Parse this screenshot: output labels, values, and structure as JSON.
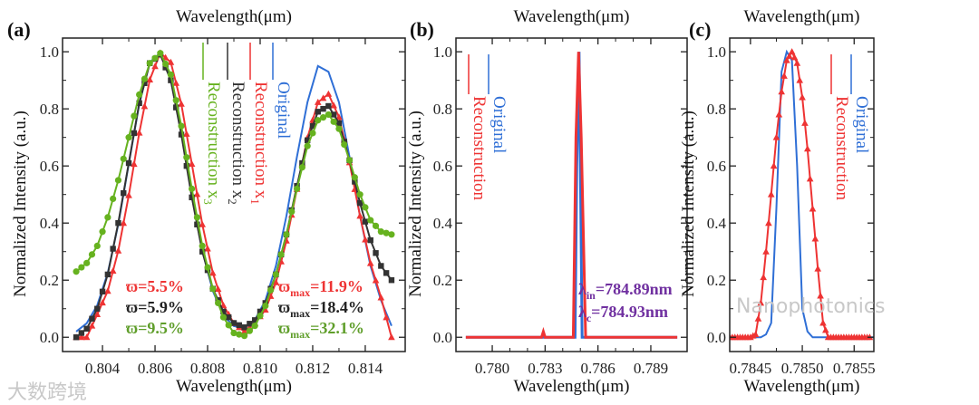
{
  "watermarks": {
    "left": "大数跨境",
    "right": "Nanophotonics"
  },
  "chart_data": [
    {
      "panel_label": "(a)",
      "type": "line",
      "title_top": "Wavelength(μm)",
      "xlabel": "Wavelength(μm)",
      "ylabel": "Normalized Intensity (a.u.)",
      "xlim": [
        0.80248,
        0.81552
      ],
      "ylim": [
        -0.05,
        1.048
      ],
      "xticks": [
        0.804,
        0.806,
        0.808,
        0.81,
        0.812,
        0.814
      ],
      "xtick_labels": [
        "0.804",
        "0.806",
        "0.808",
        "0.810",
        "0.812",
        "0.814"
      ],
      "yticks": [
        0.0,
        0.2,
        0.4,
        0.6,
        0.8,
        1.0
      ],
      "ytick_labels": [
        "0.0",
        "0.2",
        "0.4",
        "0.6",
        "0.8",
        "1.0"
      ],
      "x": [
        0.803,
        0.8034,
        0.8038,
        0.8042,
        0.8046,
        0.805,
        0.8054,
        0.8058,
        0.8062,
        0.8066,
        0.807,
        0.8074,
        0.8078,
        0.8082,
        0.8086,
        0.809,
        0.8094,
        0.8098,
        0.8102,
        0.8106,
        0.811,
        0.8114,
        0.8118,
        0.8122,
        0.8126,
        0.813,
        0.8134,
        0.8138,
        0.8142,
        0.8146,
        0.815
      ],
      "series": [
        {
          "name": "Original",
          "sub": "",
          "color": "#2f6fd6",
          "marker": "none",
          "values": [
            0.02,
            0.049,
            0.112,
            0.225,
            0.395,
            0.607,
            0.817,
            0.963,
            0.996,
            0.902,
            0.716,
            0.497,
            0.303,
            0.162,
            0.076,
            0.039,
            0.034,
            0.061,
            0.129,
            0.25,
            0.425,
            0.632,
            0.823,
            0.95,
            0.93,
            0.823,
            0.632,
            0.425,
            0.25,
            0.129,
            0.04
          ]
        },
        {
          "name": "Reconstruction x",
          "sub": "1",
          "color": "#ee3333",
          "marker": "triangle",
          "values": [
            0,
            0,
            0.08,
            0.162,
            0.303,
            0.497,
            0.716,
            0.902,
            0.996,
            0.963,
            0.817,
            0.607,
            0.395,
            0.225,
            0.112,
            0.049,
            0.02,
            0.05,
            0.096,
            0.192,
            0.338,
            0.519,
            0.699,
            0.823,
            0.852,
            0.771,
            0.612,
            0.425,
            0.259,
            0.139,
            0.0
          ]
        },
        {
          "name": "Reconstruction x",
          "sub": "2",
          "color": "#333333",
          "marker": "square",
          "values": [
            0,
            0.03,
            0.1,
            0.22,
            0.4,
            0.61,
            0.82,
            0.96,
            0.99,
            0.9,
            0.71,
            0.49,
            0.3,
            0.17,
            0.09,
            0.05,
            0.035,
            0.06,
            0.12,
            0.22,
            0.36,
            0.53,
            0.69,
            0.79,
            0.81,
            0.75,
            0.62,
            0.47,
            0.34,
            0.25,
            0.2
          ]
        },
        {
          "name": "Reconstruction x",
          "sub": "3",
          "color": "#66b21f",
          "marker": "circle",
          "values": [
            0.23,
            0.26,
            0.32,
            0.42,
            0.55,
            0.7,
            0.85,
            0.96,
            0.995,
            0.92,
            0.74,
            0.52,
            0.32,
            0.17,
            0.07,
            0.015,
            0.005,
            0.04,
            0.11,
            0.22,
            0.36,
            0.52,
            0.67,
            0.76,
            0.78,
            0.73,
            0.62,
            0.5,
            0.41,
            0.37,
            0.36
          ]
        }
      ],
      "annotations": [
        {
          "sym": "ϖ",
          "sub": "",
          "text": "=5.5%",
          "color": "#ee3333"
        },
        {
          "sym": "ϖ",
          "sub": "",
          "text": "=5.9%",
          "color": "#222222"
        },
        {
          "sym": "ϖ",
          "sub": "",
          "text": "=9.5%",
          "color": "#5f9e2a"
        },
        {
          "sym": "ϖ",
          "sub": "max",
          "text": "=11.9%",
          "color": "#ee3333"
        },
        {
          "sym": "ϖ",
          "sub": "max",
          "text": "=18.4%",
          "color": "#222222"
        },
        {
          "sym": "ϖ",
          "sub": "max",
          "text": "=32.1%",
          "color": "#5f9e2a"
        }
      ]
    },
    {
      "panel_label": "(b)",
      "type": "line",
      "title_top": "Wavelength(μm)",
      "xlabel": "Wavelength(μm)",
      "ylabel": "Normalized Intensity (a.u.)",
      "xlim": [
        0.77794,
        0.79106
      ],
      "ylim": [
        -0.05,
        1.048
      ],
      "xticks": [
        0.78,
        0.783,
        0.786,
        0.789
      ],
      "xtick_labels": [
        "0.780",
        "0.783",
        "0.786",
        "0.789"
      ],
      "yticks": [
        0.0,
        0.2,
        0.4,
        0.6,
        0.8,
        1.0
      ],
      "ytick_labels": [
        "0.0",
        "0.2",
        "0.4",
        "0.6",
        "0.8",
        "1.0"
      ],
      "series": [
        {
          "name": "Original",
          "sub": "",
          "color": "#2f6fd6",
          "marker": "none",
          "x": [
            0.7785,
            0.7847,
            0.7848,
            0.78493,
            0.785,
            0.7851,
            0.7905
          ],
          "values": [
            0,
            0,
            0.6,
            1.0,
            0.6,
            0,
            0
          ]
        },
        {
          "name": "Reconstruction",
          "sub": "",
          "color": "#ee3333",
          "marker": "none",
          "x": [
            0.7785,
            0.7828,
            0.7829,
            0.783,
            0.7846,
            0.78475,
            0.7849,
            0.78505,
            0.7853,
            0.7905
          ],
          "values": [
            0,
            0,
            0.02,
            0,
            0,
            0.7,
            1.0,
            0.7,
            0,
            0
          ]
        }
      ],
      "annotations": [
        {
          "sym": "λ",
          "sub": "in",
          "text": "=784.89nm",
          "color": "#7030a0"
        },
        {
          "sym": "λ",
          "sub": "c",
          "text": "=784.93nm",
          "color": "#7030a0"
        }
      ]
    },
    {
      "panel_label": "(c)",
      "type": "line",
      "title_top": "Wavelength(μm)",
      "xlabel": "Wavelength(μm)",
      "ylabel": "Normalized Intensity (a.u.)",
      "xlim": [
        0.7843,
        0.78569
      ],
      "ylim": [
        -0.05,
        1.048
      ],
      "xticks": [
        0.7845,
        0.785,
        0.7855
      ],
      "xtick_labels": [
        "0.7845",
        "0.7850",
        "0.7855"
      ],
      "yticks": [
        0.0,
        0.2,
        0.4,
        0.6,
        0.8,
        1.0
      ],
      "ytick_labels": [
        "0.0",
        "0.2",
        "0.4",
        "0.6",
        "0.8",
        "1.0"
      ],
      "series": [
        {
          "name": "Original",
          "sub": "",
          "color": "#2f6fd6",
          "marker": "none",
          "x": [
            0.7843,
            0.7846,
            0.78465,
            0.7847,
            0.78475,
            0.7848,
            0.78485,
            0.7849,
            0.78495,
            0.785,
            0.78505,
            0.7851,
            0.78569
          ],
          "values": [
            0,
            0,
            0.01,
            0.05,
            0.45,
            0.93,
            1.0,
            0.97,
            0.6,
            0.1,
            0.02,
            0,
            0
          ]
        },
        {
          "name": "Reconstruction",
          "sub": "",
          "color": "#ee3333",
          "marker": "triangle",
          "x": [
            0.7843,
            0.78435,
            0.7844,
            0.78445,
            0.7845,
            0.78455,
            0.7846,
            0.78465,
            0.7847,
            0.78475,
            0.7848,
            0.78485,
            0.7849,
            0.78495,
            0.785,
            0.78505,
            0.7851,
            0.78515,
            0.7852,
            0.78525,
            0.7853,
            0.78535,
            0.7854,
            0.78545,
            0.7855,
            0.78555,
            0.7856,
            0.78565
          ],
          "values": [
            0,
            0,
            0,
            0,
            0,
            0.01,
            0.12,
            0.3,
            0.5,
            0.7,
            0.86,
            0.97,
            1.0,
            0.96,
            0.84,
            0.66,
            0.45,
            0.24,
            0.05,
            0,
            0,
            0,
            0,
            0,
            0,
            0,
            0,
            0
          ]
        }
      ],
      "annotations": []
    }
  ]
}
